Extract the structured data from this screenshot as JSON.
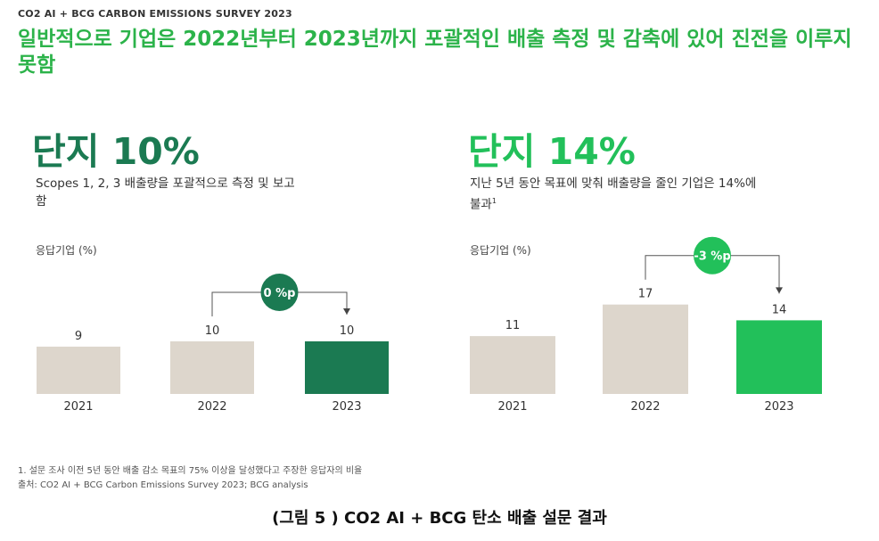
{
  "eyebrow": "CO2 AI + BCG CARBON EMISSIONS SURVEY 2023",
  "headline": "일반적으로 기업은 2022년부터 2023년까지 포괄적인 배출 측정 및 감축에 있어 진전을 이루지 못함",
  "left_panel": {
    "big_stat": "단지 10%",
    "description": "Scopes 1, 2, 3 배출량을 포괄적으로 측정 및 보고함",
    "ylabel": "응답기업 (%)"
  },
  "right_panel": {
    "big_stat": "단지 14%",
    "description": "지난 5년 동안 목표에 맞춰 배출량을 줄인 기업은 14%에 불과",
    "footnote_marker": "1",
    "ylabel": "응답기업 (%)"
  },
  "colors": {
    "bar_neutral": "#ddd6cc",
    "highlight_left": "#1b7a52",
    "highlight_right": "#22c05a",
    "headline": "#2cb34a"
  },
  "chart_data": [
    {
      "type": "bar",
      "categories": [
        "2021",
        "2022",
        "2023"
      ],
      "values": [
        9,
        10,
        10
      ],
      "ylabel": "응답기업 (%)",
      "annotation": {
        "label": "0 %p",
        "from": "2022",
        "to": "2023"
      }
    },
    {
      "type": "bar",
      "categories": [
        "2021",
        "2022",
        "2023"
      ],
      "values": [
        11,
        17,
        14
      ],
      "ylabel": "응답기업 (%)",
      "annotation": {
        "label": "-3 %p",
        "from": "2022",
        "to": "2023"
      }
    }
  ],
  "footnotes": [
    "1. 설문 조사 이전 5년 동안 배출 감소 목표의 75% 이상을 달성했다고 주장한 응답자의 비율",
    "출처: CO2 AI + BCG Carbon Emissions Survey 2023; BCG analysis"
  ],
  "caption": "(그림 5 ) CO2 AI + BCG 탄소 배출 설문 결과"
}
